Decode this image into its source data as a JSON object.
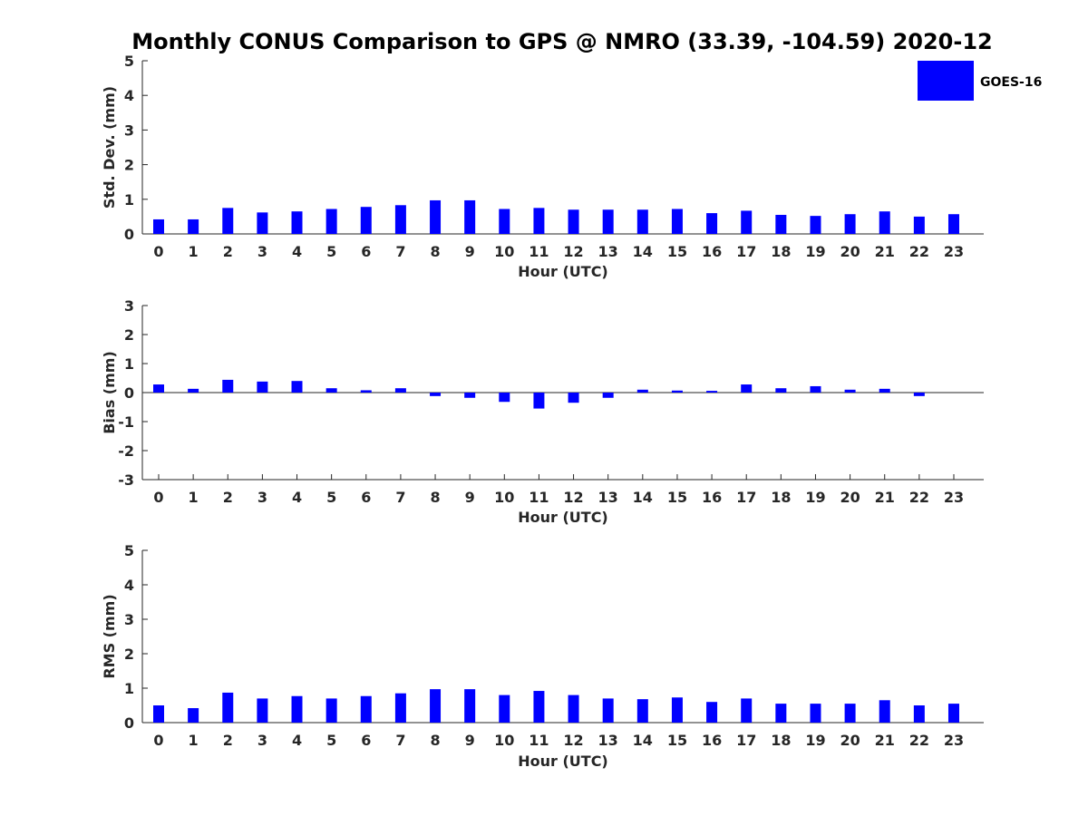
{
  "title": "Monthly CONUS Comparison to GPS @ NMRO (33.39, -104.59) 2020-12",
  "legend": {
    "label": "GOES-16",
    "color": "#0000ff"
  },
  "chart_data": [
    {
      "type": "bar",
      "name": "std-dev",
      "series_name": "GOES-16",
      "color": "#0000ff",
      "xlabel": "Hour (UTC)",
      "ylabel": "Std. Dev. (mm)",
      "categories": [
        "0",
        "1",
        "2",
        "3",
        "4",
        "5",
        "6",
        "7",
        "8",
        "9",
        "10",
        "11",
        "12",
        "13",
        "14",
        "15",
        "16",
        "17",
        "18",
        "19",
        "20",
        "21",
        "22",
        "23"
      ],
      "values": [
        0.42,
        0.42,
        0.75,
        0.62,
        0.65,
        0.72,
        0.78,
        0.83,
        0.97,
        0.97,
        0.72,
        0.75,
        0.7,
        0.7,
        0.7,
        0.72,
        0.6,
        0.67,
        0.55,
        0.52,
        0.57,
        0.65,
        0.5,
        0.57
      ],
      "ylim": [
        0,
        5
      ],
      "yticks": [
        0,
        1,
        2,
        3,
        4,
        5
      ],
      "grid": false
    },
    {
      "type": "bar",
      "name": "bias",
      "series_name": "GOES-16",
      "color": "#0000ff",
      "xlabel": "Hour (UTC)",
      "ylabel": "Bias (mm)",
      "categories": [
        "0",
        "1",
        "2",
        "3",
        "4",
        "5",
        "6",
        "7",
        "8",
        "9",
        "10",
        "11",
        "12",
        "13",
        "14",
        "15",
        "16",
        "17",
        "18",
        "19",
        "20",
        "21",
        "22",
        "23"
      ],
      "values": [
        0.28,
        0.13,
        0.44,
        0.38,
        0.4,
        0.15,
        0.08,
        0.15,
        -0.12,
        -0.18,
        -0.32,
        -0.55,
        -0.35,
        -0.18,
        0.1,
        0.07,
        0.06,
        0.28,
        0.15,
        0.22,
        0.1,
        0.13,
        -0.12,
        0.0
      ],
      "ylim": [
        -3,
        3
      ],
      "yticks": [
        -3,
        -2,
        -1,
        0,
        1,
        2,
        3
      ],
      "grid": false
    },
    {
      "type": "bar",
      "name": "rms",
      "series_name": "GOES-16",
      "color": "#0000ff",
      "xlabel": "Hour (UTC)",
      "ylabel": "RMS (mm)",
      "categories": [
        "0",
        "1",
        "2",
        "3",
        "4",
        "5",
        "6",
        "7",
        "8",
        "9",
        "10",
        "11",
        "12",
        "13",
        "14",
        "15",
        "16",
        "17",
        "18",
        "19",
        "20",
        "21",
        "22",
        "23"
      ],
      "values": [
        0.5,
        0.42,
        0.87,
        0.7,
        0.77,
        0.7,
        0.77,
        0.85,
        0.97,
        0.97,
        0.8,
        0.92,
        0.8,
        0.7,
        0.68,
        0.73,
        0.6,
        0.7,
        0.55,
        0.55,
        0.55,
        0.65,
        0.5,
        0.55
      ],
      "ylim": [
        0,
        5
      ],
      "yticks": [
        0,
        1,
        2,
        3,
        4,
        5
      ],
      "grid": false
    }
  ]
}
